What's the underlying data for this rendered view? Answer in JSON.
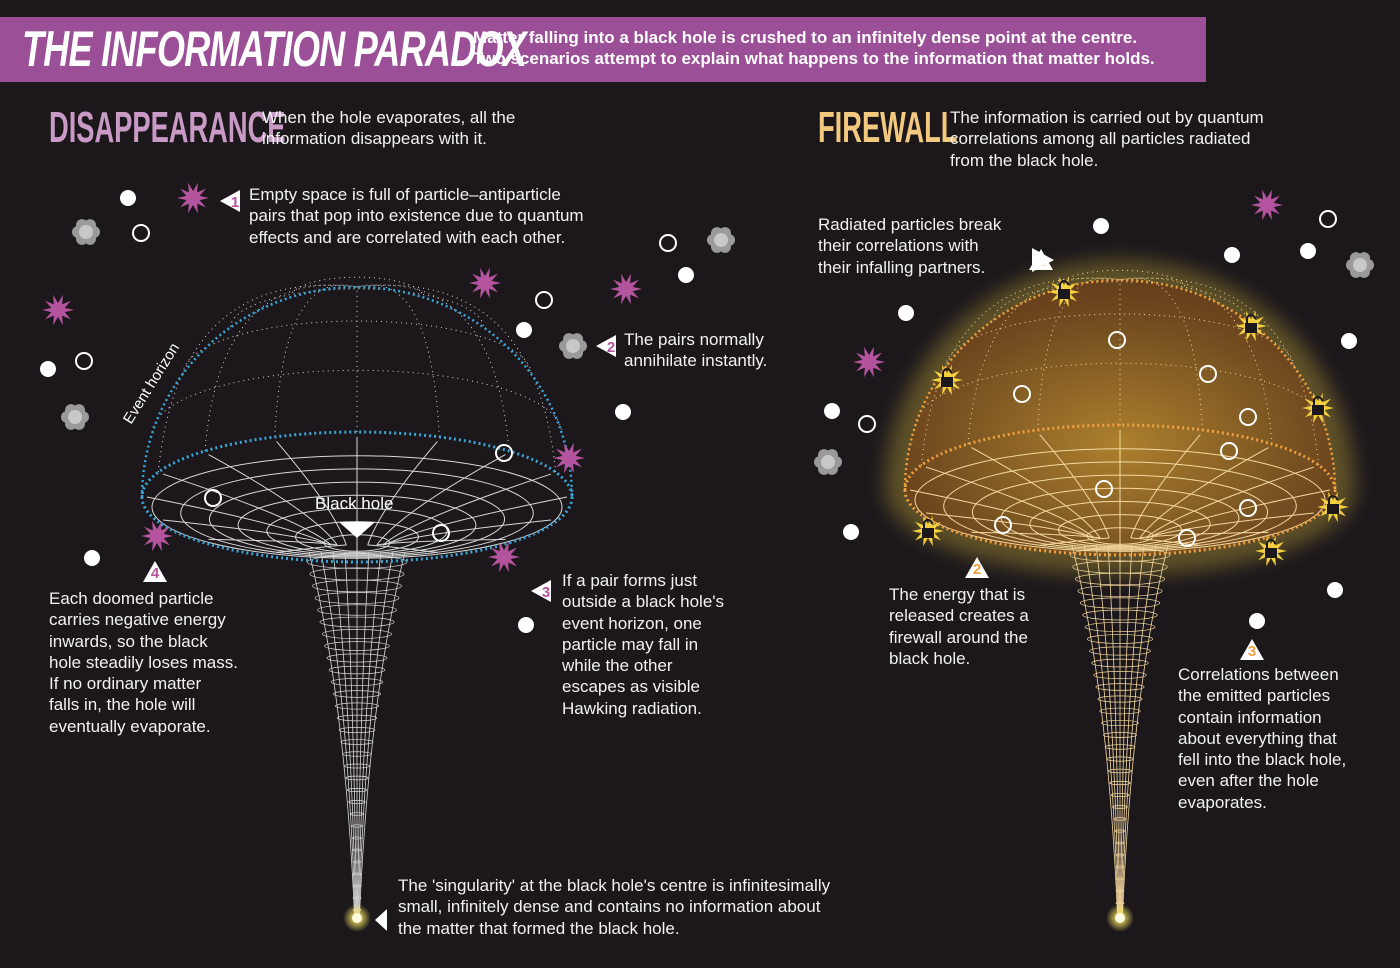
{
  "header": {
    "title": "THE INFORMATION PARADOX",
    "subtitle_line1": "Matter falling into a black hole is crushed to an infinitely dense point at the centre.",
    "subtitle_line2": "Two scenarios attempt to explain what happens to the information that matter holds."
  },
  "colors": {
    "banner": "#9b4f96",
    "background": "#1b171b",
    "disappearance": "#c99ac5",
    "firewall": "#f2c97e",
    "horizon_blue": "#3aa6d8",
    "firewall_orange": "#f0a040",
    "particle_pink": "#b4549e"
  },
  "disappearance": {
    "heading": "DISAPPEARANCE",
    "intro": [
      "When the hole evaporates, all the",
      "information disappears with it."
    ],
    "event_horizon_label": "Event horizon",
    "black_hole_label": "Black hole",
    "steps": [
      {
        "number": "1",
        "lines": [
          "Empty space is full of particle–antiparticle",
          "pairs that pop into existence due to quantum",
          "effects and are correlated with each other."
        ]
      },
      {
        "number": "2",
        "lines": [
          "The pairs normally",
          "annihilate instantly."
        ]
      },
      {
        "number": "3",
        "lines": [
          "If a pair forms just",
          "outside a black hole's",
          "event horizon, one",
          "particle may fall in",
          "while the other",
          "escapes as visible",
          "Hawking radiation."
        ]
      },
      {
        "number": "4",
        "lines": [
          "Each doomed particle",
          "carries negative energy",
          "inwards, so the black",
          "hole steadily loses mass.",
          "If no ordinary matter",
          "falls in, the hole will",
          "eventually evaporate."
        ]
      }
    ],
    "singularity_note": [
      "The 'singularity' at the black hole's centre is infinitesimally",
      "small, infinitely dense and contains no information about",
      "the matter that formed the black hole."
    ]
  },
  "firewall": {
    "heading": "FIREWALL",
    "intro": [
      "The information is carried out by quantum",
      "correlations among all particles radiated",
      "from the black hole."
    ],
    "steps": [
      {
        "number": "1",
        "lines": [
          "Radiated particles break",
          "their correlations with",
          "their infalling partners."
        ]
      },
      {
        "number": "2",
        "lines": [
          "The energy that is",
          "released creates a",
          "firewall around the",
          "black hole."
        ]
      },
      {
        "number": "3",
        "lines": [
          "Correlations between",
          "the emitted particles",
          "contain information",
          "about everything that",
          "fell into the black hole,",
          "even after the hole",
          "evaporates."
        ]
      }
    ]
  }
}
